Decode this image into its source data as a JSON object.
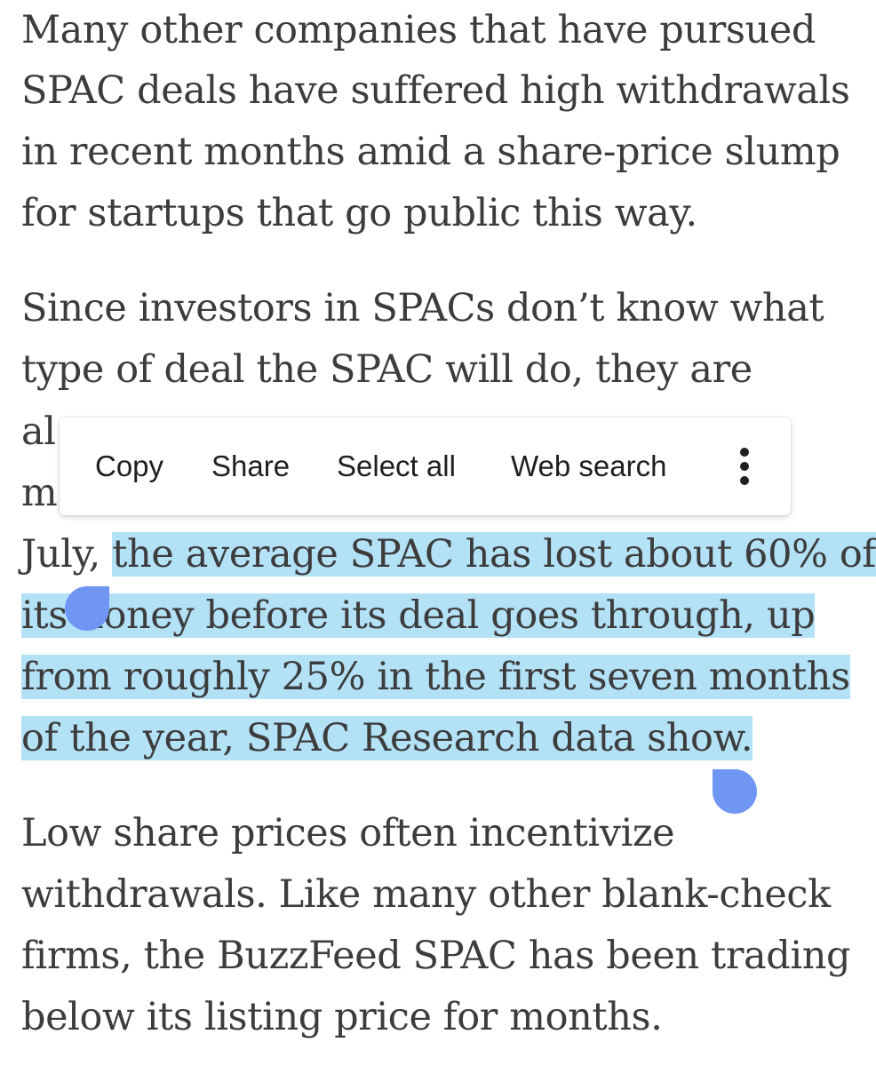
{
  "article": {
    "paragraph1": [
      "Many other companies that have pursued",
      "SPAC deals have suffered high withdrawals",
      "in recent months amid a share-price slump",
      "for startups that go public this way."
    ],
    "paragraph2": {
      "line1": "Since investors in SPACs don’t know what",
      "line2": "type of deal the SPAC will do, they are",
      "line3_visible": "al",
      "line4_visible": "m",
      "line5_unselected": "July, ",
      "line5_selected": "the average SPAC has lost about 60% of",
      "line6_a": "its ",
      "line6_b": "noney before its deal goes through, up",
      "line7": "from roughly 25% in the first seven months",
      "line8": "of the year, SPAC Research data show."
    },
    "paragraph3": [
      "Low share prices often incentivize",
      "withdrawals. Like many other blank-check",
      "firms, the BuzzFeed SPAC has been trading",
      "below its listing price for months."
    ]
  },
  "selection_menu": {
    "copy_label": "Copy",
    "share_label": "Share",
    "select_all_label": "Select all",
    "web_search_label": "Web search",
    "more_icon": "more-vert-icon"
  },
  "colors": {
    "selection": "#b3e1f5",
    "handle": "#6f96f2",
    "text": "#3c3c3c"
  }
}
